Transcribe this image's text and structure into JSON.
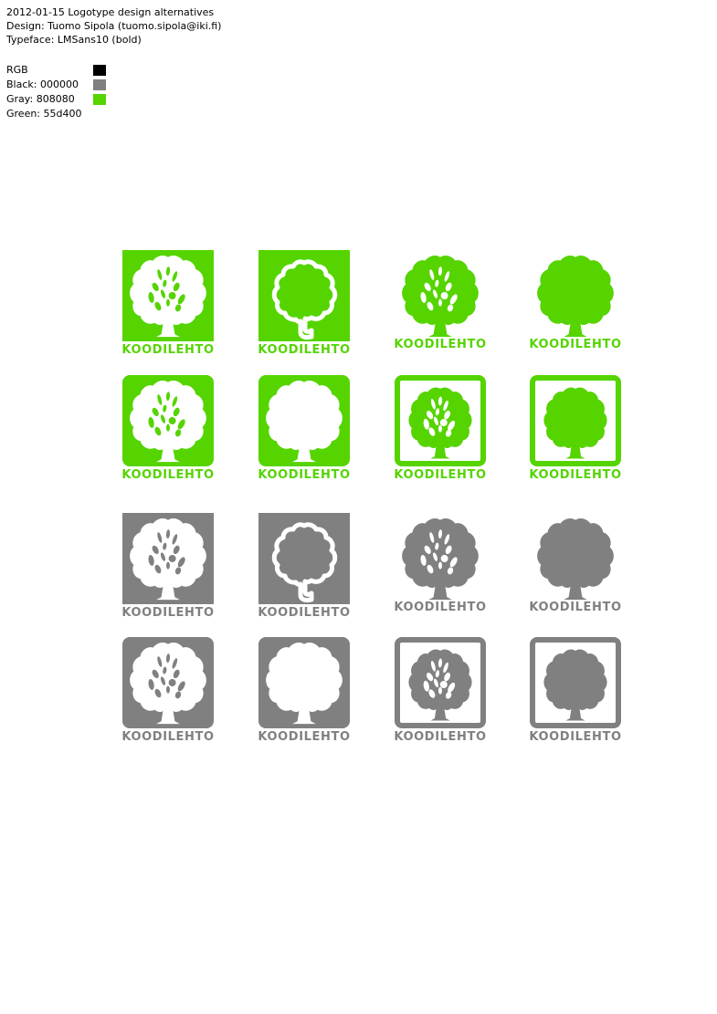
{
  "header": {
    "line1": "2012-01-15 Logotype design alternatives",
    "line2": "Design: Tuomo Sipola (tuomo.sipola@iki.fi)",
    "line3": "Typeface: LMSans10 (bold)"
  },
  "legend": {
    "title": "RGB",
    "entries": [
      {
        "label": "Black: 000000",
        "color": "#000000"
      },
      {
        "label": "Gray: 808080",
        "color": "#808080"
      },
      {
        "label": "Green: 55d400",
        "color": "#55d400"
      }
    ]
  },
  "colors": {
    "green": "#55d400",
    "gray": "#808080",
    "white": "#ffffff"
  },
  "logos": [
    {
      "color": "green",
      "style": "square-filled-knockout",
      "wordmark": "KOODILEHTO"
    },
    {
      "color": "green",
      "style": "square-outline-tree",
      "wordmark": "KOODILEHTO"
    },
    {
      "color": "green",
      "style": "tree-only-detailed",
      "wordmark": "KOODILEHTO"
    },
    {
      "color": "green",
      "style": "tree-only-solid",
      "wordmark": "KOODILEHTO"
    },
    {
      "color": "green",
      "style": "rounded-filled-knockout",
      "wordmark": "KOODILEHTO"
    },
    {
      "color": "green",
      "style": "rounded-solid-knockout",
      "wordmark": "KOODILEHTO"
    },
    {
      "color": "green",
      "style": "framed-detailed",
      "wordmark": "KOODILEHTO"
    },
    {
      "color": "green",
      "style": "framed-solid",
      "wordmark": "KOODILEHTO"
    },
    {
      "color": "gray",
      "style": "square-filled-knockout",
      "wordmark": "KOODILEHTO"
    },
    {
      "color": "gray",
      "style": "square-outline-tree",
      "wordmark": "KOODILEHTO"
    },
    {
      "color": "gray",
      "style": "tree-only-detailed",
      "wordmark": "KOODILEHTO"
    },
    {
      "color": "gray",
      "style": "tree-only-solid",
      "wordmark": "KOODILEHTO"
    },
    {
      "color": "gray",
      "style": "rounded-filled-knockout",
      "wordmark": "KOODILEHTO"
    },
    {
      "color": "gray",
      "style": "rounded-solid-knockout",
      "wordmark": "KOODILEHTO"
    },
    {
      "color": "gray",
      "style": "framed-detailed",
      "wordmark": "KOODILEHTO"
    },
    {
      "color": "gray",
      "style": "framed-solid",
      "wordmark": "KOODILEHTO"
    }
  ]
}
